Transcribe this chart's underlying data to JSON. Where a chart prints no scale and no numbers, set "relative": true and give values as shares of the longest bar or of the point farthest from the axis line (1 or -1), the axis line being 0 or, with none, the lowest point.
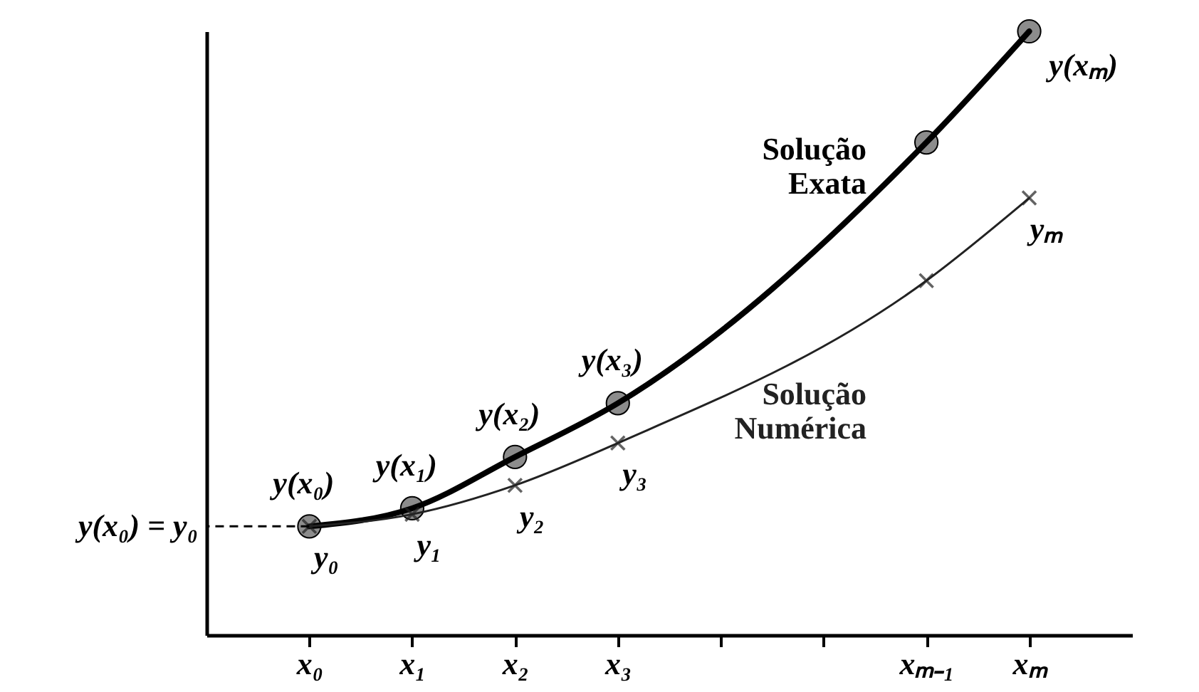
{
  "chart_data": {
    "type": "line",
    "relative": true,
    "categories": [
      "x₀",
      "x₁",
      "x₂",
      "x₃",
      null,
      null,
      "xₘ₋₁",
      "xₘ"
    ],
    "series": [
      {
        "name": "Solução Exata",
        "color": "#000000",
        "marker": "circle",
        "values": [
          0.18,
          0.21,
          0.295,
          0.384,
          null,
          null,
          0.816,
          1
        ]
      },
      {
        "name": "Solução Numérica",
        "color": "#222222",
        "marker": "cross",
        "values": [
          0.18,
          0.2,
          0.248,
          0.318,
          null,
          null,
          0.587,
          0.724
        ]
      }
    ],
    "ref_lines": [
      {
        "axis": "y",
        "value": 0.18,
        "label": "y(x₀) = y₀",
        "line_style": "dashed"
      }
    ],
    "annotations": [
      {
        "text": "y(x₀)",
        "x": "x₀",
        "y": 0.18
      },
      {
        "text": "y(x₁)",
        "x": "x₁",
        "y": 0.21
      },
      {
        "text": "y(x₂)",
        "x": "x₂",
        "y": 0.295
      },
      {
        "text": "y(x₃)",
        "x": "x₃",
        "y": 0.384
      },
      {
        "text": "y(xₘ)",
        "x": "xₘ",
        "y": 1
      },
      {
        "text": "y₀",
        "x": "x₀",
        "y": 0.18
      },
      {
        "text": "y₁",
        "x": "x₁",
        "y": 0.2
      },
      {
        "text": "y₂",
        "x": "x₂",
        "y": 0.248
      },
      {
        "text": "y₃",
        "x": "x₃",
        "y": 0.318
      },
      {
        "text": "yₘ",
        "x": "xₘ",
        "y": 0.724
      }
    ],
    "tick_labels": "x",
    "legend": false
  }
}
